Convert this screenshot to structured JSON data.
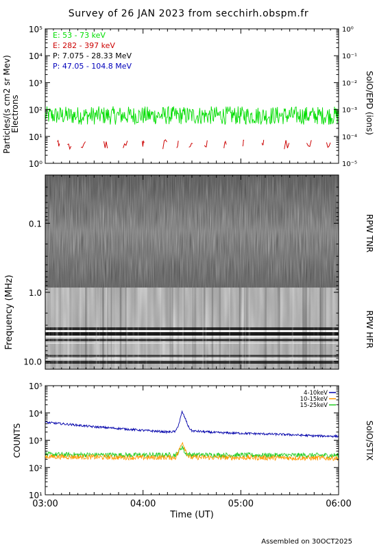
{
  "title": "Survey of 26 JAN 2023 from secchirh.obspm.fr",
  "footer": "Assembled on 30OCT2025",
  "colors": {
    "electron_low": "#00dd00",
    "electron_high": "#cc0000",
    "proton_low": "#000000",
    "proton_high": "#0000bb",
    "stix_low": "#0000aa",
    "stix_mid": "#ff9900",
    "stix_high": "#22cc22"
  },
  "chart_data": [
    {
      "type": "line",
      "panel": "SolO/EPD",
      "ylabel_left": "Particles/(s cm2 sr Mev)",
      "ylabel_left_sub": "Electrons",
      "ylabel_right": "SolO/EPD (ions)",
      "yscale": "log",
      "ylim": [
        1,
        100000
      ],
      "yticks_left": [
        "10⁰",
        "10¹",
        "10²",
        "10³",
        "10⁴",
        "10⁵"
      ],
      "ylim_right": [
        1e-05,
        1
      ],
      "yticks_right": [
        "10⁻⁵",
        "10⁻⁴",
        "10⁻³",
        "10⁻²",
        "10⁻¹",
        "10⁰"
      ],
      "xlim": [
        "03:00",
        "06:00"
      ],
      "series": [
        {
          "name": "E: 53 - 73 keV",
          "color": "#00dd00",
          "level": 60,
          "spread": 2.2
        },
        {
          "name": "E: 282 - 397 keV",
          "color": "#cc0000",
          "level": 5,
          "spread": 1.5,
          "intermittent": true
        },
        {
          "name": "P: 7.075 - 28.33 MeV",
          "color": "#000000"
        },
        {
          "name": "P: 47.05 - 104.8 MeV",
          "color": "#0000bb"
        }
      ]
    },
    {
      "type": "heatmap",
      "panel": "RPW",
      "ylabel": "Frequency (MHz)",
      "yscale": "log",
      "yticks": [
        "0.1",
        "1.0",
        "10.0"
      ],
      "ylim": [
        0.02,
        13
      ],
      "sublabels": [
        "RPW TNR",
        "RPW HFR"
      ]
    },
    {
      "type": "line",
      "panel": "SolO/STIX",
      "ylabel": "COUNTS",
      "ylabel_right": "SolO/STIX",
      "xlabel": "Time (UT)",
      "yscale": "log",
      "ylim": [
        10,
        100000
      ],
      "yticks": [
        "10¹",
        "10²",
        "10³",
        "10⁴",
        "10⁵"
      ],
      "xticks": [
        "03:00",
        "04:00",
        "05:00",
        "06:00"
      ],
      "series": [
        {
          "name": "4-10keV",
          "color": "#0000aa",
          "x": [
            "03:00",
            "03:15",
            "03:30",
            "03:45",
            "04:00",
            "04:15",
            "04:20",
            "04:22",
            "04:24",
            "04:26",
            "04:28",
            "04:30",
            "04:45",
            "05:00",
            "05:15",
            "05:30",
            "05:45",
            "06:00"
          ],
          "y": [
            4500,
            3800,
            3100,
            2700,
            2300,
            2000,
            2100,
            4000,
            11000,
            6000,
            3000,
            2200,
            1900,
            1800,
            1700,
            1600,
            1450,
            1400
          ]
        },
        {
          "name": "10-15keV",
          "color": "#ff9900",
          "x": [
            "03:00",
            "03:30",
            "04:00",
            "04:20",
            "04:22",
            "04:24",
            "04:26",
            "04:28",
            "04:30",
            "05:00",
            "05:30",
            "06:00"
          ],
          "y": [
            250,
            240,
            230,
            235,
            400,
            900,
            450,
            250,
            235,
            230,
            225,
            220
          ]
        },
        {
          "name": "15-25keV",
          "color": "#22cc22",
          "x": [
            "03:00",
            "03:30",
            "04:00",
            "04:20",
            "04:22",
            "04:24",
            "04:26",
            "04:30",
            "05:00",
            "05:30",
            "06:00"
          ],
          "y": [
            300,
            290,
            285,
            290,
            380,
            600,
            320,
            290,
            285,
            280,
            280
          ]
        }
      ]
    }
  ]
}
